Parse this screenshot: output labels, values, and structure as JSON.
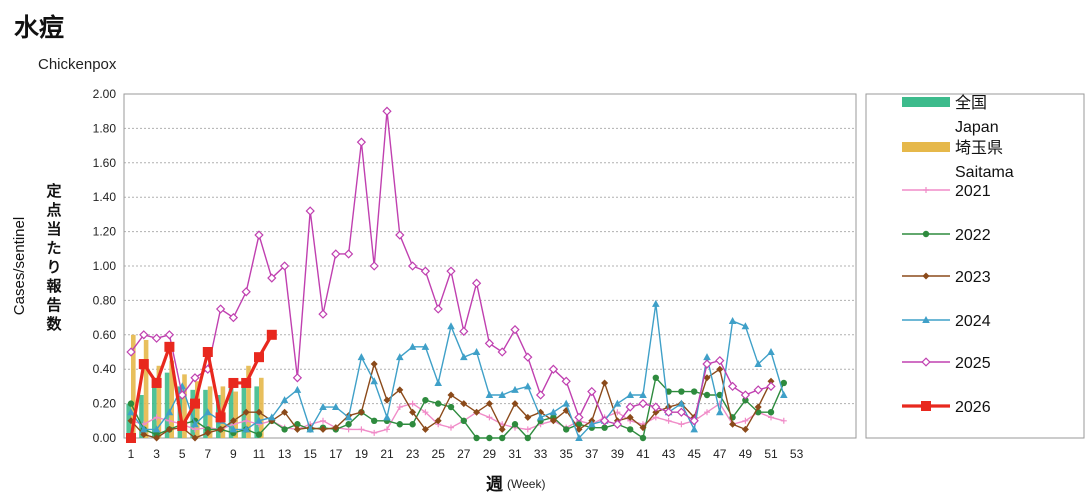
{
  "title": "水痘",
  "subtitle": "Chickenpox",
  "chart_data": {
    "type": "line",
    "ylabel_en": "Cases/sentinel",
    "ylabel_jp": "定点当たり報告数",
    "xlabel_jp": "週",
    "xlabel_en": "(Week)",
    "ylim": [
      0,
      2.0
    ],
    "y_ticks": [
      "0.00",
      "0.20",
      "0.40",
      "0.60",
      "0.80",
      "1.00",
      "1.20",
      "1.40",
      "1.60",
      "1.80",
      "2.00"
    ],
    "x_ticks": [
      1,
      3,
      5,
      7,
      9,
      11,
      13,
      15,
      17,
      19,
      21,
      23,
      25,
      27,
      29,
      31,
      33,
      35,
      37,
      39,
      41,
      43,
      45,
      47,
      49,
      51,
      53
    ],
    "grid": true,
    "legend_position": "right",
    "bar_series": [
      {
        "name": "全国 Japan",
        "color": "#3dbb8c",
        "values": [
          0.2,
          0.25,
          0.35,
          0.38,
          0.3,
          0.28,
          0.28,
          0.25,
          0.3,
          0.3,
          0.3
        ]
      },
      {
        "name": "埼玉県 Saitama",
        "color": "#e6b84a",
        "values": [
          0.6,
          0.57,
          0.42,
          0.45,
          0.37,
          0.33,
          0.3,
          0.3,
          0.27,
          0.42,
          0.35
        ]
      }
    ],
    "series": [
      {
        "name": "2021",
        "color": "#f08cc8",
        "marker": "plus",
        "values": [
          0.1,
          0.08,
          0.12,
          0.1,
          0.08,
          0.05,
          0.06,
          0.05,
          0.08,
          0.1,
          0.08,
          0.1,
          0.06,
          0.05,
          0.08,
          0.1,
          0.06,
          0.05,
          0.05,
          0.03,
          0.05,
          0.18,
          0.2,
          0.15,
          0.08,
          0.06,
          0.1,
          0.15,
          0.12,
          0.08,
          0.06,
          0.05,
          0.08,
          0.1,
          0.06,
          0.1,
          0.08,
          0.12,
          0.15,
          0.1,
          0.08,
          0.12,
          0.1,
          0.08,
          0.1,
          0.15,
          0.2,
          0.08,
          0.1,
          0.15,
          0.12,
          0.1
        ]
      },
      {
        "name": "2022",
        "color": "#2e8b3e",
        "marker": "circle",
        "values": [
          0.2,
          0.05,
          0.02,
          0.05,
          0.08,
          0.1,
          0.05,
          0.05,
          0.03,
          0.05,
          0.02,
          0.1,
          0.05,
          0.08,
          0.05,
          0.06,
          0.05,
          0.08,
          0.15,
          0.1,
          0.1,
          0.08,
          0.08,
          0.22,
          0.2,
          0.18,
          0.1,
          0.0,
          0.0,
          0.0,
          0.08,
          0.0,
          0.1,
          0.12,
          0.05,
          0.08,
          0.06,
          0.06,
          0.08,
          0.05,
          0.0,
          0.35,
          0.27,
          0.27,
          0.27,
          0.25,
          0.25,
          0.12,
          0.22,
          0.15,
          0.15,
          0.32
        ]
      },
      {
        "name": "2023",
        "color": "#8b4a1a",
        "marker": "diamond",
        "values": [
          0.1,
          0.02,
          0.0,
          0.05,
          0.06,
          0.0,
          0.03,
          0.05,
          0.1,
          0.15,
          0.15,
          0.1,
          0.15,
          0.05,
          0.06,
          0.05,
          0.06,
          0.13,
          0.15,
          0.43,
          0.22,
          0.28,
          0.15,
          0.05,
          0.1,
          0.25,
          0.2,
          0.15,
          0.2,
          0.05,
          0.2,
          0.12,
          0.15,
          0.1,
          0.16,
          0.05,
          0.1,
          0.32,
          0.1,
          0.12,
          0.06,
          0.15,
          0.18,
          0.2,
          0.12,
          0.35,
          0.4,
          0.08,
          0.05,
          0.18,
          0.33
        ]
      },
      {
        "name": "2024",
        "color": "#3fa0c8",
        "marker": "triangle",
        "values": [
          0.15,
          0.05,
          0.05,
          0.15,
          0.3,
          0.08,
          0.15,
          0.1,
          0.05,
          0.05,
          0.1,
          0.12,
          0.22,
          0.28,
          0.05,
          0.18,
          0.18,
          0.12,
          0.47,
          0.33,
          0.12,
          0.47,
          0.53,
          0.53,
          0.32,
          0.65,
          0.47,
          0.5,
          0.25,
          0.25,
          0.28,
          0.3,
          0.12,
          0.15,
          0.2,
          0.0,
          0.08,
          0.1,
          0.2,
          0.25,
          0.25,
          0.78,
          0.15,
          0.2,
          0.05,
          0.47,
          0.15,
          0.68,
          0.65,
          0.43,
          0.5,
          0.25
        ]
      },
      {
        "name": "2025",
        "color": "#c040b0",
        "marker": "open-diamond",
        "values": [
          0.5,
          0.6,
          0.58,
          0.6,
          0.25,
          0.35,
          0.4,
          0.75,
          0.7,
          0.85,
          1.18,
          0.93,
          1.0,
          0.35,
          1.32,
          0.72,
          1.07,
          1.07,
          1.72,
          1.0,
          1.9,
          1.18,
          1.0,
          0.97,
          0.75,
          0.97,
          0.62,
          0.9,
          0.55,
          0.5,
          0.63,
          0.47,
          0.25,
          0.4,
          0.33,
          0.12,
          0.27,
          0.1,
          0.08,
          0.18,
          0.2,
          0.18,
          0.15,
          0.15,
          0.1,
          0.43,
          0.45,
          0.3,
          0.25,
          0.28,
          0.3
        ]
      },
      {
        "name": "2026",
        "color": "#e8281e",
        "marker": "square",
        "values": [
          0.0,
          0.43,
          0.32,
          0.53,
          0.07,
          0.2,
          0.5,
          0.12,
          0.32,
          0.32,
          0.47,
          0.6
        ]
      }
    ]
  },
  "legend": {
    "japan_jp": "全国",
    "japan_en": "Japan",
    "saitama_jp": "埼玉県",
    "saitama_en": "Saitama",
    "y2021": "2021",
    "y2022": "2022",
    "y2023": "2023",
    "y2024": "2024",
    "y2025": "2025",
    "y2026": "2026"
  }
}
